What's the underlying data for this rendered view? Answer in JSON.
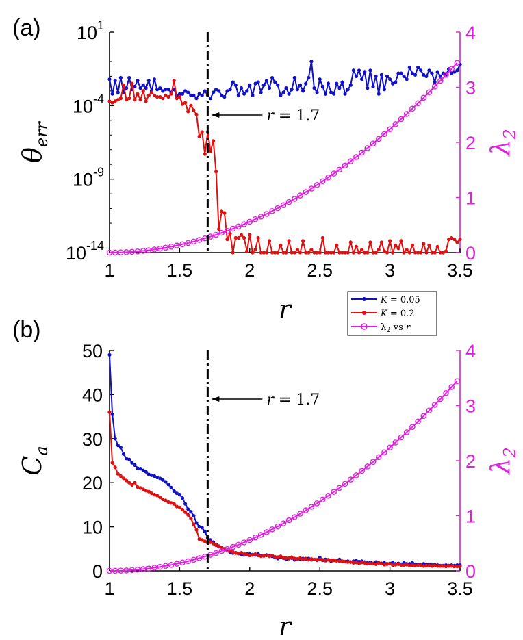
{
  "figure": {
    "legend": {
      "entries": [
        {
          "label": "K = 0.05",
          "color": "#1010c8",
          "marker": "dot"
        },
        {
          "label": "K = 0.2",
          "color": "#e01010",
          "marker": "dot"
        },
        {
          "label": "λ2 vs r",
          "color": "#e020e0",
          "marker": "circle"
        }
      ]
    }
  },
  "chart_data": [
    {
      "panel": "(a)",
      "type": "line",
      "xlabel": "r",
      "ylabel": "θerr",
      "y2label": "λ2",
      "xlim": [
        1,
        3.5
      ],
      "yscale": "log",
      "ylim_log10": [
        -14,
        1
      ],
      "y2lim": [
        0,
        4
      ],
      "xticks": [
        "1",
        "1.5",
        "2",
        "2.5",
        "3",
        "3.5"
      ],
      "yticks": [
        {
          "base": "10",
          "exp": "1"
        },
        {
          "base": "10",
          "exp": "-4"
        },
        {
          "base": "10",
          "exp": "-9"
        },
        {
          "base": "10",
          "exp": "-14"
        }
      ],
      "y2ticks": [
        "0",
        "1",
        "2",
        "3",
        "4"
      ],
      "vline": {
        "x": 1.7,
        "style": "dash-dot"
      },
      "annotation": {
        "text": "r = 1.7",
        "x": 1.7
      },
      "series": [
        {
          "name": "K = 0.05",
          "axis": "left",
          "x_start": 1.0,
          "x_step": 0.02,
          "values_log10": [
            -2.2,
            -3.2,
            -2.3,
            -3.1,
            -2.1,
            -3.1,
            -2.8,
            -2.1,
            -2.9,
            -2.7,
            -2.3,
            -2.8,
            -2.6,
            -2.8,
            -2.3,
            -3.0,
            -2.2,
            -2.9,
            -2.8,
            -3.0,
            -2.9,
            -2.9,
            -3.1,
            -2.9,
            -3.3,
            -3.2,
            -3.2,
            -3.0,
            -3.1,
            -3.3,
            -3.3,
            -3.5,
            -3.2,
            -3.3,
            -3.0,
            -3.3,
            -3.5,
            -3.1,
            -2.9,
            -3.0,
            -3.3,
            -3.4,
            -3.0,
            -2.9,
            -2.4,
            -2.6,
            -3.3,
            -2.8,
            -3.2,
            -3.0,
            -2.6,
            -3.3,
            -2.5,
            -2.4,
            -3.1,
            -2.6,
            -2.3,
            -2.8,
            -2.1,
            -2.4,
            -2.6,
            -3.3,
            -3.1,
            -2.8,
            -3.2,
            -2.9,
            -2.1,
            -2.9,
            -2.6,
            -3.0,
            -2.5,
            -2.1,
            -1.0,
            -2.8,
            -3.1,
            -2.2,
            -2.7,
            -3.2,
            -2.5,
            -3.1,
            -3.2,
            -2.5,
            -2.8,
            -2.4,
            -3.2,
            -2.9,
            -2.6,
            -1.6,
            -2.0,
            -1.6,
            -2.2,
            -1.7,
            -2.8,
            -1.6,
            -2.7,
            -2.0,
            -3.2,
            -1.9,
            -2.9,
            -2.0,
            -2.2,
            -2.5,
            -2.4,
            -1.8,
            -1.8,
            -2.0,
            -2.2,
            -1.4,
            -1.8,
            -1.9,
            -1.4,
            -1.6,
            -1.9,
            -2.0,
            -1.6,
            -1.8,
            -2.4,
            -1.7,
            -2.0,
            -1.8,
            -1.9,
            -1.5,
            -1.8,
            -1.7,
            -1.6,
            -1.2
          ]
        },
        {
          "name": "K = 0.2",
          "axis": "left",
          "x_start": 1.0,
          "x_step": 0.02,
          "values_log10": [
            -3.7,
            -3.8,
            -3.7,
            -3.6,
            -3.5,
            -2.6,
            -3.6,
            -3.5,
            -2.5,
            -3.6,
            -3.2,
            -3.6,
            -3.0,
            -3.7,
            -3.3,
            -3.1,
            -3.3,
            -3.4,
            -3.4,
            -3.5,
            -3.3,
            -3.4,
            -3.2,
            -2.3,
            -3.5,
            -3.4,
            -3.9,
            -3.8,
            -4.4,
            -4.0,
            -4.3,
            -4.6,
            -6.1,
            -5.8,
            -7.3,
            -5.8,
            -7.1,
            -6.4,
            -8.5,
            -12.4,
            -11.2,
            -11.3,
            -13.1,
            -12.7,
            -14.0,
            -13.0,
            -13.0,
            -12.8,
            -13.0,
            -13.9,
            -12.8,
            -14.0,
            -13.8,
            -13.0,
            -14.0,
            -14.0,
            -14.0,
            -13.2,
            -14.0,
            -14.0,
            -14.0,
            -13.5,
            -14.0,
            -14.0,
            -13.2,
            -14.0,
            -14.0,
            -13.8,
            -14.0,
            -13.2,
            -14.0,
            -14.0,
            -13.8,
            -14.0,
            -14.0,
            -14.0,
            -13.0,
            -14.0,
            -14.0,
            -14.0,
            -14.0,
            -13.5,
            -14.0,
            -14.0,
            -14.0,
            -14.0,
            -13.3,
            -14.0,
            -13.6,
            -14.0,
            -13.8,
            -14.0,
            -14.0,
            -13.3,
            -14.0,
            -14.0,
            -13.8,
            -13.3,
            -13.9,
            -14.0,
            -13.2,
            -14.0,
            -13.5,
            -13.7,
            -13.2,
            -14.0,
            -13.8,
            -14.0,
            -13.5,
            -14.0,
            -14.0,
            -14.0,
            -13.4,
            -14.0,
            -13.5,
            -14.0,
            -14.0,
            -13.6,
            -14.0,
            -14.0,
            -13.9,
            -13.1,
            -13.0,
            -13.1,
            -13.3,
            -13.1
          ]
        },
        {
          "name": "λ2 vs r",
          "axis": "right",
          "x_start": 1.0,
          "x_step": 0.04,
          "formula": "0.56*(r-1)^2"
        }
      ]
    },
    {
      "panel": "(b)",
      "type": "line",
      "xlabel": "r",
      "ylabel": "Ca",
      "y2label": "λ2",
      "xlim": [
        1,
        3.5
      ],
      "ylim": [
        0,
        50
      ],
      "y2lim": [
        0,
        4
      ],
      "xticks": [
        "1",
        "1.5",
        "2",
        "2.5",
        "3",
        "3.5"
      ],
      "yticks": [
        "0",
        "10",
        "20",
        "30",
        "40",
        "50"
      ],
      "y2ticks": [
        "0",
        "1",
        "2",
        "3",
        "4"
      ],
      "vline": {
        "x": 1.7,
        "style": "dash-dot"
      },
      "annotation": {
        "text": "r = 1.7",
        "x": 1.7
      },
      "series": [
        {
          "name": "K = 0.05",
          "axis": "left",
          "x_start": 1.0,
          "x_step": 0.02,
          "values": [
            49.0,
            35.5,
            30.0,
            28.5,
            28.0,
            26.5,
            25.5,
            25.3,
            24.5,
            24.0,
            23.3,
            23.2,
            22.8,
            22.5,
            21.9,
            21.7,
            21.5,
            21.2,
            21.0,
            20.6,
            20.2,
            19.6,
            18.9,
            18.1,
            17.6,
            17.3,
            16.5,
            15.2,
            14.0,
            13.4,
            12.5,
            10.9,
            10.0,
            9.8,
            8.9,
            7.5,
            7.0,
            6.5,
            6.0,
            5.5,
            5.3,
            5.0,
            4.7,
            4.2,
            4.0,
            4.1,
            3.9,
            3.7,
            3.6,
            3.9,
            3.8,
            3.7,
            3.6,
            3.8,
            3.5,
            3.4,
            3.6,
            3.4,
            3.3,
            3.0,
            2.8,
            3.1,
            2.9,
            2.6,
            2.8,
            2.9,
            2.5,
            2.6,
            2.7,
            2.8,
            2.6,
            2.8,
            2.5,
            2.6,
            2.5,
            3.0,
            2.4,
            2.6,
            2.5,
            2.2,
            2.4,
            2.3,
            2.6,
            2.2,
            2.1,
            2.2,
            2.0,
            2.2,
            2.3,
            2.1,
            2.2,
            2.0,
            1.8,
            1.9,
            1.6,
            2.0,
            1.8,
            1.7,
            1.8,
            1.6,
            1.7,
            1.9,
            1.6,
            1.7,
            1.5,
            1.8,
            1.6,
            1.6,
            1.8,
            1.5,
            1.5,
            1.3,
            1.6,
            1.4,
            1.5,
            1.3,
            1.4,
            1.3,
            1.2,
            1.2,
            1.3,
            1.2,
            1.3,
            1.2,
            1.3,
            1.3
          ]
        },
        {
          "name": "K = 0.2",
          "axis": "left",
          "x_start": 1.0,
          "x_step": 0.02,
          "values": [
            36.0,
            24.5,
            23.5,
            22.0,
            21.5,
            21.0,
            20.5,
            20.0,
            19.5,
            20.0,
            19.0,
            18.8,
            18.5,
            18.2,
            18.0,
            17.6,
            17.3,
            17.1,
            16.7,
            16.2,
            16.0,
            15.6,
            15.4,
            15.2,
            14.6,
            14.4,
            13.9,
            13.3,
            12.7,
            11.9,
            10.5,
            9.3,
            7.2,
            7.0,
            6.7,
            6.4,
            6.5,
            6.2,
            5.8,
            5.6,
            5.2,
            4.9,
            4.6,
            4.5,
            4.3,
            4.0,
            3.9,
            4.1,
            3.8,
            3.7,
            3.5,
            3.6,
            3.8,
            3.5,
            3.3,
            3.4,
            3.5,
            3.3,
            3.5,
            3.2,
            3.1,
            3.3,
            3.0,
            2.9,
            2.9,
            3.1,
            2.8,
            2.7,
            2.9,
            2.6,
            2.8,
            2.5,
            2.7,
            2.6,
            2.4,
            2.6,
            2.5,
            2.3,
            2.5,
            2.4,
            2.4,
            2.3,
            2.2,
            2.2,
            2.1,
            2.0,
            2.0,
            1.8,
            1.9,
            1.7,
            1.9,
            1.8,
            1.6,
            1.7,
            1.7,
            1.5,
            1.8,
            1.6,
            1.4,
            1.5,
            1.6,
            1.3,
            1.4,
            1.5,
            1.3,
            1.3,
            1.4,
            1.2,
            1.3,
            1.2,
            1.3,
            1.2,
            1.1,
            1.2,
            1.2,
            1.1,
            1.2,
            1.1,
            1.1,
            1.1,
            1.0,
            1.1,
            1.1,
            1.0,
            1.0,
            1.0
          ]
        },
        {
          "name": "λ2 vs r",
          "axis": "right",
          "x_start": 1.0,
          "x_step": 0.04,
          "formula": "0.56*(r-1)^2"
        }
      ]
    }
  ]
}
